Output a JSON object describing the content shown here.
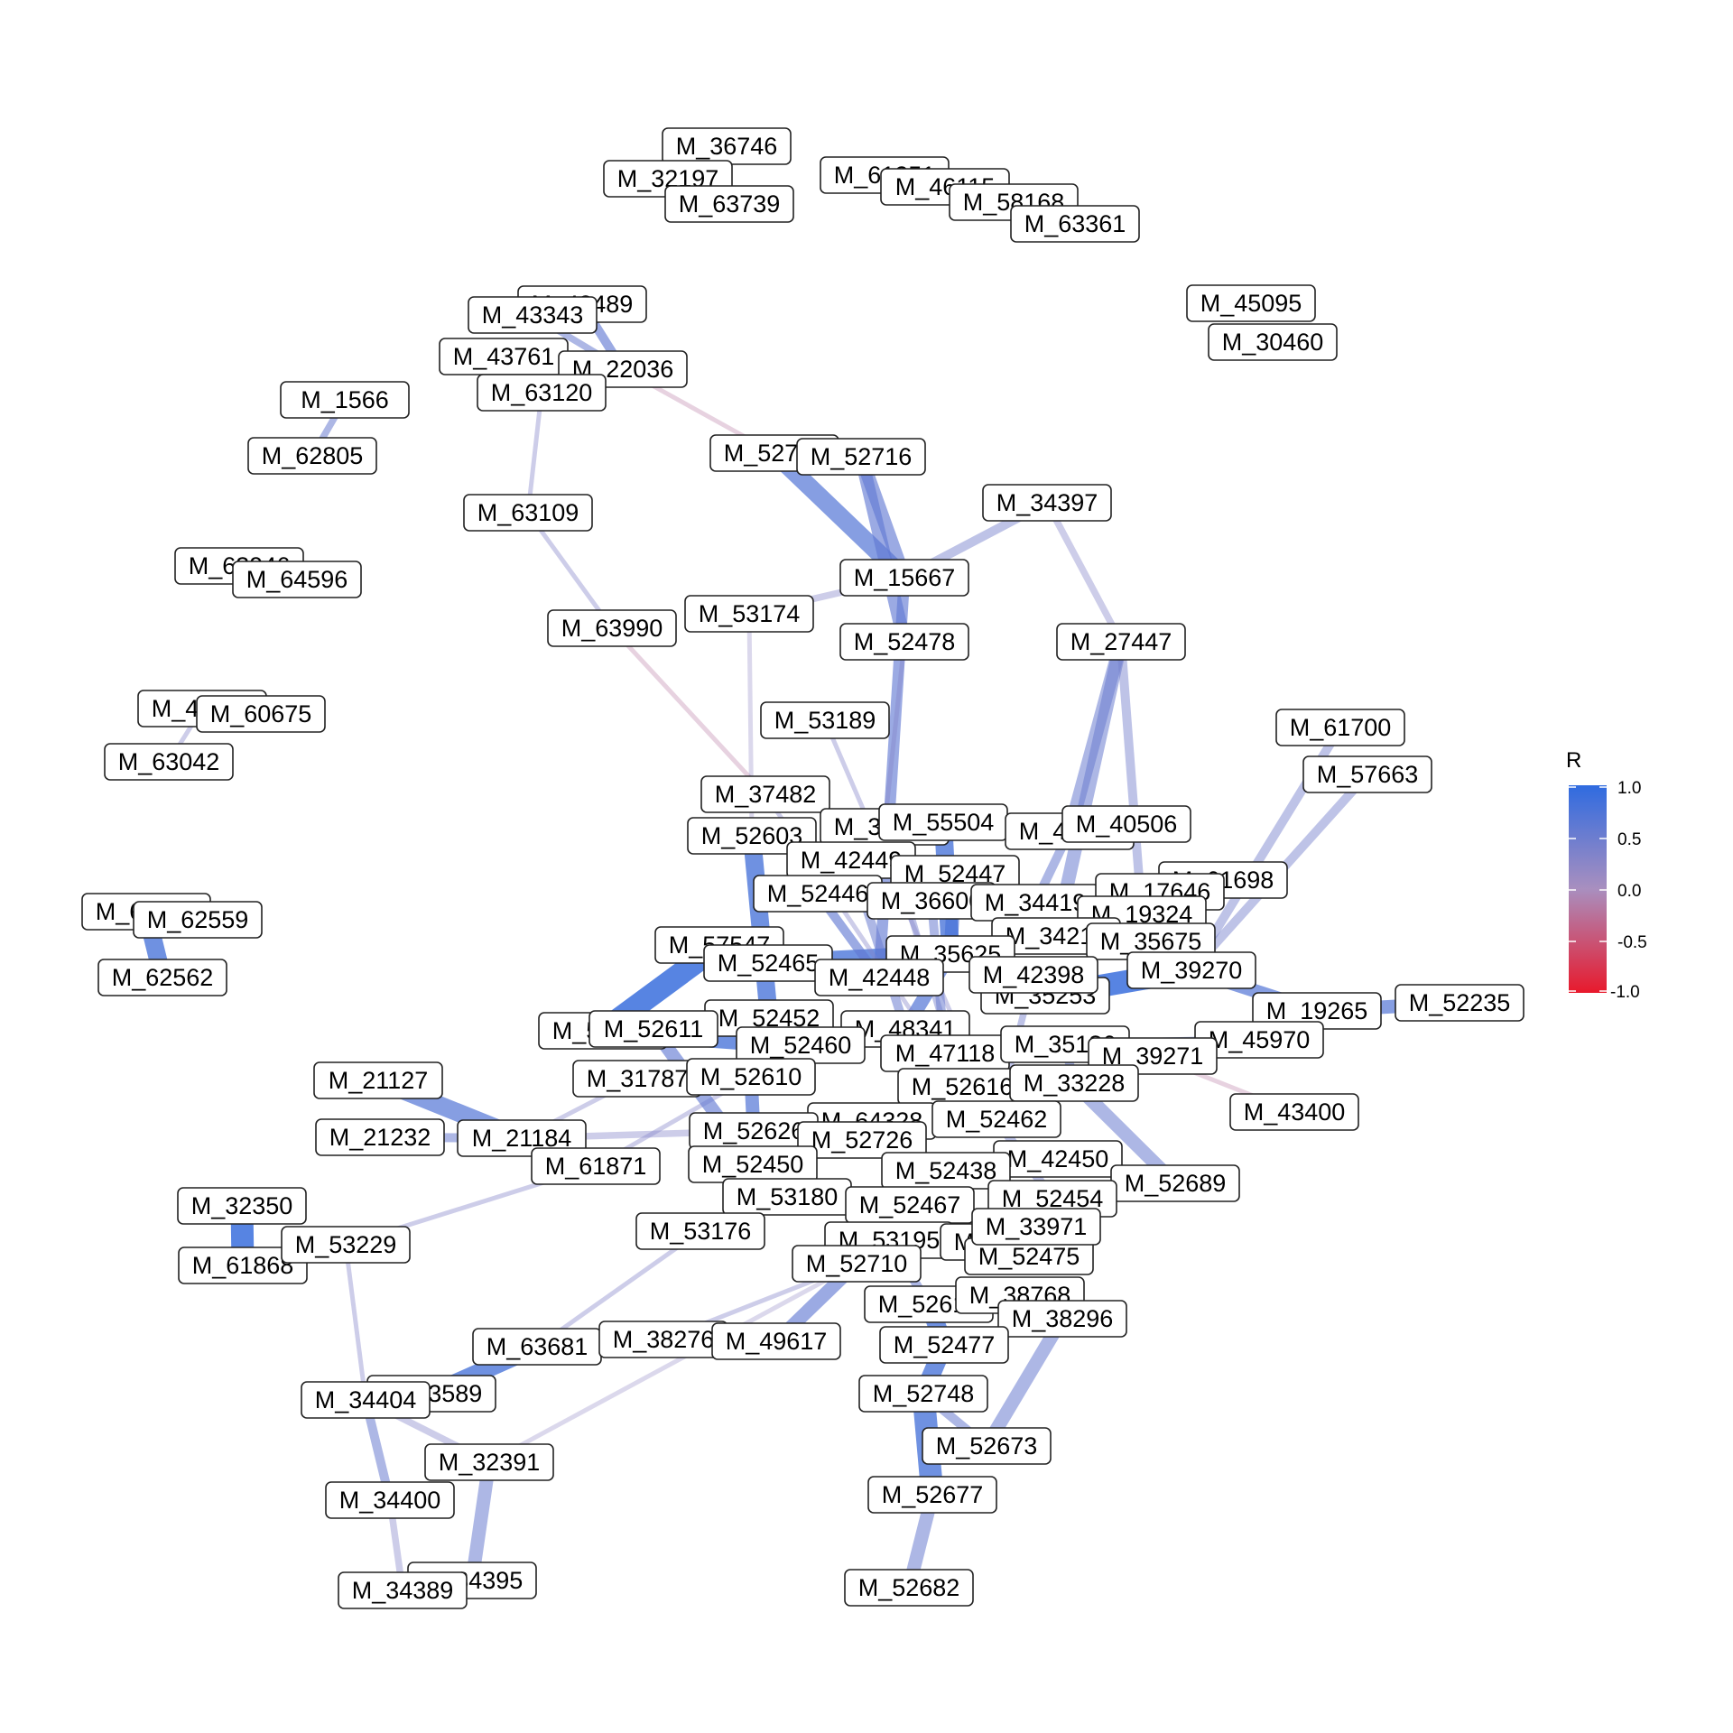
{
  "legend": {
    "title": "R",
    "ticks": [
      "1.0",
      "0.5",
      "0.0",
      "-0.5",
      "-1.0"
    ],
    "color_scale": {
      "positive": "#2f6be0",
      "neutral": "#a98fbf",
      "negative": "#e8192c"
    }
  },
  "nodes": [
    {
      "id": "M_36746"
    },
    {
      "id": "M_32197"
    },
    {
      "id": "M_63739"
    },
    {
      "id": "M_61251"
    },
    {
      "id": "M_46115"
    },
    {
      "id": "M_58168"
    },
    {
      "id": "M_63361"
    },
    {
      "id": "M_43489"
    },
    {
      "id": "M_43343"
    },
    {
      "id": "M_43761"
    },
    {
      "id": "M_22036"
    },
    {
      "id": "M_63120"
    },
    {
      "id": "M_45095"
    },
    {
      "id": "M_30460"
    },
    {
      "id": "M_1566"
    },
    {
      "id": "M_62805"
    },
    {
      "id": "M_52785"
    },
    {
      "id": "M_52716"
    },
    {
      "id": "M_34397"
    },
    {
      "id": "M_63109"
    },
    {
      "id": "M_15667"
    },
    {
      "id": "M_63946"
    },
    {
      "id": "M_64596"
    },
    {
      "id": "M_53174"
    },
    {
      "id": "M_63990"
    },
    {
      "id": "M_52478"
    },
    {
      "id": "M_27447"
    },
    {
      "id": "M_43266"
    },
    {
      "id": "M_60675"
    },
    {
      "id": "M_63042"
    },
    {
      "id": "M_53189"
    },
    {
      "id": "M_61700"
    },
    {
      "id": "M_57663"
    },
    {
      "id": "M_37482"
    },
    {
      "id": "M_52603"
    },
    {
      "id": "M_36594"
    },
    {
      "id": "M_55504"
    },
    {
      "id": "M_41220"
    },
    {
      "id": "M_40506"
    },
    {
      "id": "M_42449"
    },
    {
      "id": "M_52447"
    },
    {
      "id": "M_61698"
    },
    {
      "id": "M_52446"
    },
    {
      "id": "M_36600"
    },
    {
      "id": "M_34419"
    },
    {
      "id": "M_17646"
    },
    {
      "id": "M_19324"
    },
    {
      "id": "M_62566"
    },
    {
      "id": "M_62559"
    },
    {
      "id": "M_62562"
    },
    {
      "id": "M_57547"
    },
    {
      "id": "M_34214"
    },
    {
      "id": "M_35675"
    },
    {
      "id": "M_52465"
    },
    {
      "id": "M_35625"
    },
    {
      "id": "M_42448"
    },
    {
      "id": "M_39270"
    },
    {
      "id": "M_35253"
    },
    {
      "id": "M_42398"
    },
    {
      "id": "M_52235"
    },
    {
      "id": "M_19265"
    },
    {
      "id": "M_52452"
    },
    {
      "id": "M_48341"
    },
    {
      "id": "M_52466"
    },
    {
      "id": "M_52611"
    },
    {
      "id": "M_52460"
    },
    {
      "id": "M_47118"
    },
    {
      "id": "M_35186"
    },
    {
      "id": "M_45970"
    },
    {
      "id": "M_39271"
    },
    {
      "id": "M_21127"
    },
    {
      "id": "M_31787"
    },
    {
      "id": "M_52610"
    },
    {
      "id": "M_52616"
    },
    {
      "id": "M_33228"
    },
    {
      "id": "M_43400"
    },
    {
      "id": "M_64328"
    },
    {
      "id": "M_52462"
    },
    {
      "id": "M_21232"
    },
    {
      "id": "M_21184"
    },
    {
      "id": "M_52626"
    },
    {
      "id": "M_52726"
    },
    {
      "id": "M_61871"
    },
    {
      "id": "M_52450"
    },
    {
      "id": "M_42450"
    },
    {
      "id": "M_52438"
    },
    {
      "id": "M_52689"
    },
    {
      "id": "M_32350"
    },
    {
      "id": "M_53180"
    },
    {
      "id": "M_52467"
    },
    {
      "id": "M_52454"
    },
    {
      "id": "M_53176"
    },
    {
      "id": "M_61868"
    },
    {
      "id": "M_53229"
    },
    {
      "id": "M_53195"
    },
    {
      "id": "M_33972"
    },
    {
      "id": "M_52710"
    },
    {
      "id": "M_52475"
    },
    {
      "id": "M_33971"
    },
    {
      "id": "M_52614"
    },
    {
      "id": "M_38768"
    },
    {
      "id": "M_38296"
    },
    {
      "id": "M_63681"
    },
    {
      "id": "M_38276"
    },
    {
      "id": "M_49617"
    },
    {
      "id": "M_52477"
    },
    {
      "id": "M_33589"
    },
    {
      "id": "M_34404"
    },
    {
      "id": "M_52748"
    },
    {
      "id": "M_32391"
    },
    {
      "id": "M_52673"
    },
    {
      "id": "M_34400"
    },
    {
      "id": "M_52677"
    },
    {
      "id": "M_34395"
    },
    {
      "id": "M_34389"
    },
    {
      "id": "M_52682"
    }
  ],
  "edges": [
    {
      "source": "M_43489",
      "target": "M_22036",
      "r": 0.6,
      "w": 2
    },
    {
      "source": "M_43343",
      "target": "M_22036",
      "r": 0.5,
      "w": 1.5
    },
    {
      "source": "M_43761",
      "target": "M_63120",
      "r": 0.4,
      "w": 1
    },
    {
      "source": "M_63120",
      "target": "M_63109",
      "r": 0.3,
      "w": 1
    },
    {
      "source": "M_22036",
      "target": "M_52785",
      "r": -0.2,
      "w": 1
    },
    {
      "source": "M_1566",
      "target": "M_62805",
      "r": 0.5,
      "w": 1.5
    },
    {
      "source": "M_52785",
      "target": "M_15667",
      "r": 0.7,
      "w": 4
    },
    {
      "source": "M_52716",
      "target": "M_52478",
      "r": 0.6,
      "w": 3
    },
    {
      "source": "M_52716",
      "target": "M_15667",
      "r": 0.6,
      "w": 3
    },
    {
      "source": "M_34397",
      "target": "M_15667",
      "r": 0.4,
      "w": 2
    },
    {
      "source": "M_34397",
      "target": "M_27447",
      "r": 0.3,
      "w": 1.5
    },
    {
      "source": "M_63109",
      "target": "M_63990",
      "r": 0.3,
      "w": 1
    },
    {
      "source": "M_63990",
      "target": "M_37482",
      "r": -0.2,
      "w": 1
    },
    {
      "source": "M_53174",
      "target": "M_15667",
      "r": 0.3,
      "w": 1.5
    },
    {
      "source": "M_53174",
      "target": "M_52603",
      "r": 0.2,
      "w": 1
    },
    {
      "source": "M_15667",
      "target": "M_42448",
      "r": 0.6,
      "w": 2.5
    },
    {
      "source": "M_52478",
      "target": "M_36594",
      "r": 0.3,
      "w": 1
    },
    {
      "source": "M_27447",
      "target": "M_41220",
      "r": 0.5,
      "w": 3
    },
    {
      "source": "M_27447",
      "target": "M_34214",
      "r": 0.5,
      "w": 3
    },
    {
      "source": "M_27447",
      "target": "M_19324",
      "r": 0.4,
      "w": 2
    },
    {
      "source": "M_43266",
      "target": "M_63042",
      "r": 0.3,
      "w": 1
    },
    {
      "source": "M_61700",
      "target": "M_39270",
      "r": 0.4,
      "w": 2
    },
    {
      "source": "M_57663",
      "target": "M_39270",
      "r": 0.4,
      "w": 2
    },
    {
      "source": "M_62566",
      "target": "M_62562",
      "r": 0.8,
      "w": 4
    },
    {
      "source": "M_57547",
      "target": "M_42448",
      "r": 0.6,
      "w": 3
    },
    {
      "source": "M_52603",
      "target": "M_52452",
      "r": 0.8,
      "w": 4
    },
    {
      "source": "M_52466",
      "target": "M_57547",
      "r": 0.9,
      "w": 5
    },
    {
      "source": "M_52466",
      "target": "M_52460",
      "r": 0.8,
      "w": 4
    },
    {
      "source": "M_39270",
      "target": "M_19265",
      "r": 0.7,
      "w": 3
    },
    {
      "source": "M_19265",
      "target": "M_52235",
      "r": 0.7,
      "w": 3
    },
    {
      "source": "M_39270",
      "target": "M_35253",
      "r": 0.9,
      "w": 5
    },
    {
      "source": "M_21127",
      "target": "M_21184",
      "r": 0.7,
      "w": 4
    },
    {
      "source": "M_21232",
      "target": "M_21184",
      "r": 0.5,
      "w": 2
    },
    {
      "source": "M_21184",
      "target": "M_52626",
      "r": 0.3,
      "w": 1.5
    },
    {
      "source": "M_21184",
      "target": "M_31787",
      "r": 0.3,
      "w": 1
    },
    {
      "source": "M_61871",
      "target": "M_52610",
      "r": 0.3,
      "w": 1
    },
    {
      "source": "M_32350",
      "target": "M_61868",
      "r": 0.9,
      "w": 5
    },
    {
      "source": "M_53229",
      "target": "M_61871",
      "r": 0.3,
      "w": 1
    },
    {
      "source": "M_53229",
      "target": "M_34404",
      "r": 0.3,
      "w": 1
    },
    {
      "source": "M_63681",
      "target": "M_53176",
      "r": 0.3,
      "w": 1
    },
    {
      "source": "M_33589",
      "target": "M_63681",
      "r": 0.8,
      "w": 4
    },
    {
      "source": "M_34404",
      "target": "M_34400",
      "r": 0.5,
      "w": 2
    },
    {
      "source": "M_34404",
      "target": "M_32391",
      "r": 0.3,
      "w": 1.5
    },
    {
      "source": "M_32391",
      "target": "M_34395",
      "r": 0.5,
      "w": 3
    },
    {
      "source": "M_34400",
      "target": "M_34389",
      "r": 0.3,
      "w": 1.5
    },
    {
      "source": "M_32391",
      "target": "M_52710",
      "r": 0.2,
      "w": 1
    },
    {
      "source": "M_38276",
      "target": "M_52710",
      "r": 0.3,
      "w": 1
    },
    {
      "source": "M_49617",
      "target": "M_52710",
      "r": 0.6,
      "w": 3
    },
    {
      "source": "M_52614",
      "target": "M_52477",
      "r": 0.8,
      "w": 4
    },
    {
      "source": "M_52477",
      "target": "M_52748",
      "r": 0.8,
      "w": 4
    },
    {
      "source": "M_52748",
      "target": "M_52677",
      "r": 0.8,
      "w": 5
    },
    {
      "source": "M_52677",
      "target": "M_52682",
      "r": 0.5,
      "w": 3
    },
    {
      "source": "M_52748",
      "target": "M_52673",
      "r": 0.5,
      "w": 2
    },
    {
      "source": "M_38296",
      "target": "M_52673",
      "r": 0.5,
      "w": 3
    },
    {
      "source": "M_52689",
      "target": "M_52454",
      "r": 0.6,
      "w": 3
    },
    {
      "source": "M_52689",
      "target": "M_33228",
      "r": 0.5,
      "w": 3
    },
    {
      "source": "M_43400",
      "target": "M_39271",
      "r": -0.2,
      "w": 1
    },
    {
      "source": "M_42450",
      "target": "M_52438",
      "r": 0.6,
      "w": 3
    },
    {
      "source": "M_53180",
      "target": "M_52467",
      "r": 0.6,
      "w": 3
    },
    {
      "source": "M_35625",
      "target": "M_52465",
      "r": 0.8,
      "w": 4
    },
    {
      "source": "M_35625",
      "target": "M_48341",
      "r": 0.7,
      "w": 3
    },
    {
      "source": "M_52447",
      "target": "M_35625",
      "r": 0.7,
      "w": 3
    },
    {
      "source": "M_55504",
      "target": "M_35625",
      "r": 0.8,
      "w": 4
    },
    {
      "source": "M_52446",
      "target": "M_42448",
      "r": 0.6,
      "w": 2
    },
    {
      "source": "M_36594",
      "target": "M_52616",
      "r": 0.4,
      "w": 1.5
    },
    {
      "source": "M_37482",
      "target": "M_52616",
      "r": 0.3,
      "w": 1
    },
    {
      "source": "M_53189",
      "target": "M_52462",
      "r": 0.3,
      "w": 1
    },
    {
      "source": "M_47118",
      "target": "M_52616",
      "r": 0.6,
      "w": 2
    },
    {
      "source": "M_35186",
      "target": "M_33228",
      "r": 0.5,
      "w": 2
    },
    {
      "source": "M_64328",
      "target": "M_52726",
      "r": 0.5,
      "w": 2
    },
    {
      "source": "M_52450",
      "target": "M_53180",
      "r": 0.5,
      "w": 2
    },
    {
      "source": "M_52610",
      "target": "M_52626",
      "r": 0.7,
      "w": 3
    },
    {
      "source": "M_52460",
      "target": "M_52610",
      "r": 0.6,
      "w": 3
    },
    {
      "source": "M_53195",
      "target": "M_52614",
      "r": 0.5,
      "w": 2
    },
    {
      "source": "M_33972",
      "target": "M_52475",
      "r": 0.5,
      "w": 2
    },
    {
      "source": "M_52462",
      "target": "M_52454",
      "r": 0.4,
      "w": 2
    },
    {
      "source": "M_41220",
      "target": "M_34419",
      "r": 0.5,
      "w": 2
    },
    {
      "source": "M_61698",
      "target": "M_17646",
      "r": 0.5,
      "w": 2
    },
    {
      "source": "M_45970",
      "target": "M_35186",
      "r": 0.5,
      "w": 2
    },
    {
      "source": "M_52611",
      "target": "M_52450",
      "r": 0.6,
      "w": 3
    },
    {
      "source": "M_42449",
      "target": "M_48341",
      "r": 0.5,
      "w": 2
    },
    {
      "source": "M_36600",
      "target": "M_47118",
      "r": 0.5,
      "w": 2
    },
    {
      "source": "M_42398",
      "target": "M_52462",
      "r": 0.4,
      "w": 1.5
    }
  ]
}
